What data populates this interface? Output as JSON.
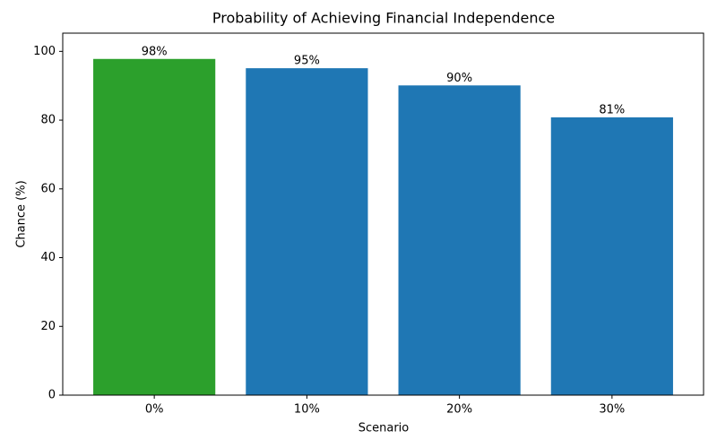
{
  "chart_data": {
    "type": "bar",
    "title": "Probability of Achieving Financial Independence",
    "xlabel": "Scenario",
    "ylabel": "Chance (%)",
    "categories": [
      "0%",
      "10%",
      "20%",
      "30%"
    ],
    "values": [
      97.8,
      95.1,
      90.1,
      80.8
    ],
    "value_labels": [
      "98%",
      "95%",
      "90%",
      "81%"
    ],
    "colors": [
      "#2ca02c",
      "#1f77b4",
      "#1f77b4",
      "#1f77b4"
    ],
    "ylim": [
      0,
      105.3
    ],
    "yticks": [
      0,
      20,
      40,
      60,
      80,
      100
    ],
    "grid": false
  }
}
